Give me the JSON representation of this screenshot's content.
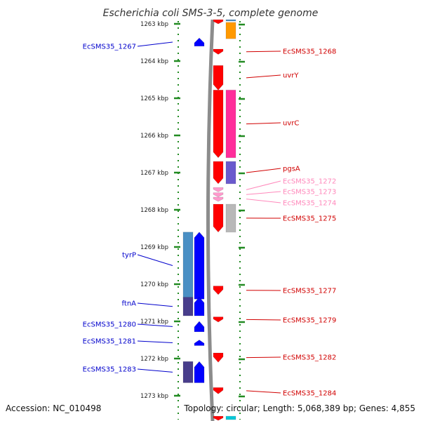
{
  "title": "Escherichia coli SMS-3-5, complete genome",
  "accession": "Accession: NC_010498",
  "topology": "Topology: circular; Length: 5,068,389 bp; Genes: 4,855",
  "colors": {
    "red": "#ff0000",
    "blue": "#0000ff",
    "pink": "#ff2d9b",
    "light_pink": "#ff99cc",
    "orange": "#ff9900",
    "slate": "#6a5acd",
    "gray": "#b8b8b8",
    "steel": "#4a8fc4",
    "indigo": "#483d8b",
    "cyan": "#00c8d8",
    "tick_green": "#228b22",
    "label_red": "#d10000",
    "label_blue": "#0000cc",
    "label_pink": "#ff88bb"
  },
  "scale": {
    "ticks": [
      {
        "value": 1263,
        "label": "1263 kbp"
      },
      {
        "value": 1264,
        "label": "1264 kbp"
      },
      {
        "value": 1265,
        "label": "1265 kbp"
      },
      {
        "value": 1266,
        "label": "1266 kbp"
      },
      {
        "value": 1267,
        "label": "1267 kbp"
      },
      {
        "value": 1268,
        "label": "1268 kbp"
      },
      {
        "value": 1269,
        "label": "1269 kbp"
      },
      {
        "value": 1270,
        "label": "1270 kbp"
      },
      {
        "value": 1271,
        "label": "1271 kbp"
      },
      {
        "value": 1272,
        "label": "1272 kbp"
      },
      {
        "value": 1273,
        "label": "1273 kbp"
      }
    ]
  },
  "genes": [
    {
      "name": "EcSMS35_1267",
      "strand": "-",
      "start": 1263.38,
      "end": 1263.6,
      "color": "blue",
      "labeled": true
    },
    {
      "name": "EcSMS35_1268",
      "strand": "+",
      "start": 1263.68,
      "end": 1263.82,
      "color": "red",
      "labeled": true
    },
    {
      "name": "uvrY",
      "strand": "+",
      "start": 1264.12,
      "end": 1264.78,
      "color": "red",
      "labeled": true
    },
    {
      "name": "uvrC",
      "strand": "+",
      "start": 1264.78,
      "end": 1266.6,
      "color": "red",
      "labeled": true
    },
    {
      "name": "pgsA",
      "strand": "+",
      "start": 1266.7,
      "end": 1267.3,
      "color": "red",
      "labeled": true
    },
    {
      "name": "EcSMS35_1272",
      "strand": "+",
      "start": 1267.4,
      "end": 1267.52,
      "color": "light_pink",
      "labeled": true
    },
    {
      "name": "EcSMS35_1273",
      "strand": "+",
      "start": 1267.54,
      "end": 1267.64,
      "color": "light_pink",
      "labeled": true
    },
    {
      "name": "EcSMS35_1274",
      "strand": "+",
      "start": 1267.66,
      "end": 1267.76,
      "color": "light_pink",
      "labeled": true
    },
    {
      "name": "EcSMS35_1275",
      "strand": "+",
      "start": 1267.85,
      "end": 1268.6,
      "color": "red",
      "labeled": true
    },
    {
      "name": "tyrP",
      "strand": "-",
      "start": 1268.6,
      "end": 1270.4,
      "color": "blue",
      "labeled": true
    },
    {
      "name": "EcSMS35_1277",
      "strand": "+",
      "start": 1270.05,
      "end": 1270.28,
      "color": "red",
      "labeled": true
    },
    {
      "name": "ftnA",
      "strand": "-",
      "start": 1270.35,
      "end": 1270.85,
      "color": "blue",
      "labeled": true
    },
    {
      "name": "EcSMS35_1279",
      "strand": "+",
      "start": 1270.88,
      "end": 1271.02,
      "color": "red",
      "labeled": true
    },
    {
      "name": "EcSMS35_1280",
      "strand": "-",
      "start": 1271.0,
      "end": 1271.28,
      "color": "blue",
      "labeled": true
    },
    {
      "name": "EcSMS35_1281",
      "strand": "-",
      "start": 1271.5,
      "end": 1271.65,
      "color": "blue",
      "labeled": true
    },
    {
      "name": "EcSMS35_1282",
      "strand": "+",
      "start": 1271.85,
      "end": 1272.1,
      "color": "red",
      "labeled": true
    },
    {
      "name": "EcSMS35_1283",
      "strand": "-",
      "start": 1272.08,
      "end": 1272.65,
      "color": "blue",
      "labeled": true
    },
    {
      "name": "EcSMS35_1284",
      "strand": "+",
      "start": 1272.78,
      "end": 1272.95,
      "color": "red",
      "labeled": true
    },
    {
      "name": "",
      "strand": "+",
      "start": 1262.5,
      "end": 1262.85,
      "color": "red",
      "labeled": false
    },
    {
      "name": "",
      "strand": "+",
      "start": 1273.55,
      "end": 1273.8,
      "color": "red",
      "labeled": false
    }
  ],
  "cds": [
    {
      "side": "+",
      "start": 1262.5,
      "end": 1262.92,
      "color": "steel"
    },
    {
      "side": "+",
      "start": 1262.96,
      "end": 1263.4,
      "color": "orange"
    },
    {
      "side": "+",
      "start": 1264.78,
      "end": 1266.6,
      "color": "pink"
    },
    {
      "side": "+",
      "start": 1266.7,
      "end": 1267.3,
      "color": "slate"
    },
    {
      "side": "+",
      "start": 1267.85,
      "end": 1268.6,
      "color": "gray"
    },
    {
      "side": "-",
      "start": 1268.6,
      "end": 1270.4,
      "color": "steel"
    },
    {
      "side": "-",
      "start": 1270.35,
      "end": 1270.85,
      "color": "indigo"
    },
    {
      "side": "-",
      "start": 1272.08,
      "end": 1272.65,
      "color": "indigo"
    },
    {
      "side": "+",
      "start": 1273.55,
      "end": 1273.8,
      "color": "cyan"
    }
  ]
}
